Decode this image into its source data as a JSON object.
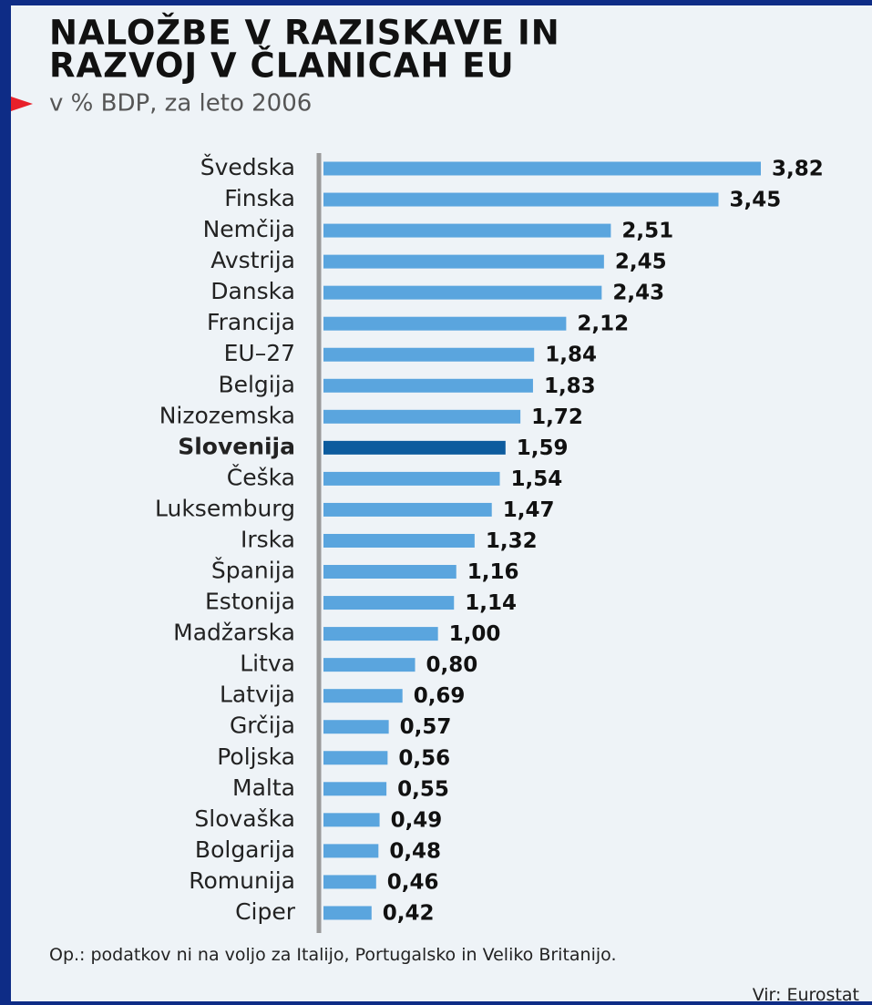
{
  "chart_data": {
    "type": "bar",
    "orientation": "horizontal",
    "title_lines": [
      "NALOŽBE V RAZISKAVE IN",
      "RAZVOJ V ČLANICAH EU"
    ],
    "subtitle": "v % BDP, za leto 2006",
    "categories": [
      "Švedska",
      "Finska",
      "Nemčija",
      "Avstrija",
      "Danska",
      "Francija",
      "EU–27",
      "Belgija",
      "Nizozemska",
      "Slovenija",
      "Češka",
      "Luksemburg",
      "Irska",
      "Španija",
      "Estonija",
      "Madžarska",
      "Litva",
      "Latvija",
      "Grčija",
      "Poljska",
      "Malta",
      "Slovaška",
      "Bolgarija",
      "Romunija",
      "Ciper"
    ],
    "values": [
      3.82,
      3.45,
      2.51,
      2.45,
      2.43,
      2.12,
      1.84,
      1.83,
      1.72,
      1.59,
      1.54,
      1.47,
      1.32,
      1.16,
      1.14,
      1.0,
      0.8,
      0.69,
      0.57,
      0.56,
      0.55,
      0.49,
      0.48,
      0.46,
      0.42
    ],
    "value_labels": [
      "3,82",
      "3,45",
      "2,51",
      "2,45",
      "2,43",
      "2,12",
      "1,84",
      "1,83",
      "1,72",
      "1,59",
      "1,54",
      "1,47",
      "1,32",
      "1,16",
      "1,14",
      "1,00",
      "0,80",
      "0,69",
      "0,57",
      "0,56",
      "0,55",
      "0,49",
      "0,48",
      "0,46",
      "0,42"
    ],
    "color": "#5aa5de",
    "bar_colors": [
      "#5aa5de",
      "#5aa5de",
      "#5aa5de",
      "#5aa5de",
      "#5aa5de",
      "#5aa5de",
      "#5aa5de",
      "#5aa5de",
      "#5aa5de",
      "#0d5c9e",
      "#5aa5de",
      "#5aa5de",
      "#5aa5de",
      "#5aa5de",
      "#5aa5de",
      "#5aa5de",
      "#5aa5de",
      "#5aa5de",
      "#5aa5de",
      "#5aa5de",
      "#5aa5de",
      "#5aa5de",
      "#5aa5de",
      "#5aa5de",
      "#5aa5de"
    ],
    "note": "Op.: podatkov ni na voljo za Italijo, Portugalsko in Veliko Britanijo.",
    "source": "Vir: Eurostat"
  }
}
